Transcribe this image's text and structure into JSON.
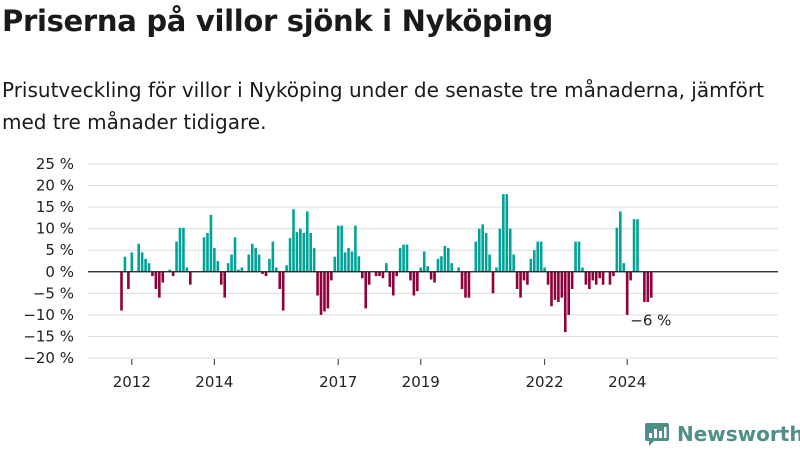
{
  "title": "Priserna på villor sjönk i Nyköping",
  "subtitle": "Prisutveckling för villor i Nyköping under de senaste tre månaderna, jämfört med tre månader tidigare.",
  "brand": {
    "name": "Newsworthy",
    "logo_icon": "bar-chart-icon"
  },
  "colors": {
    "positive": "#00a398",
    "negative": "#91003c",
    "brand": "#4f8f8a"
  },
  "chart_data": {
    "type": "bar",
    "x_unit": "month",
    "start": "2011-10",
    "y_ticks": [
      25,
      20,
      15,
      10,
      5,
      0,
      -5,
      -10,
      -15,
      -20
    ],
    "y_tick_labels": [
      "25 %",
      "20 %",
      "15 %",
      "10 %",
      "5 %",
      "0 %",
      "−5 %",
      "−10 %",
      "−15 %",
      "−20 %"
    ],
    "ylim": [
      -20,
      25
    ],
    "x_ticks": [
      {
        "label": "2012",
        "date": "2012-01"
      },
      {
        "label": "2014",
        "date": "2014-01"
      },
      {
        "label": "2017",
        "date": "2017-01"
      },
      {
        "label": "2019",
        "date": "2019-01"
      },
      {
        "label": "2022",
        "date": "2022-01"
      },
      {
        "label": "2024",
        "date": "2024-01"
      }
    ],
    "last_value_label": "−6 %",
    "values": [
      -9,
      3.5,
      -4,
      4.5,
      0,
      6.5,
      4.5,
      3,
      2,
      -1,
      -4,
      -6,
      -2.5,
      0,
      0.5,
      -1,
      7,
      10.2,
      10.2,
      1,
      -3,
      0,
      0,
      0,
      8,
      9,
      13.2,
      5.5,
      2.5,
      -3,
      -6,
      2,
      4,
      8,
      0.5,
      1,
      0,
      4,
      6.5,
      5.5,
      4,
      -0.5,
      -1,
      3,
      7,
      1,
      -4,
      -9,
      1.5,
      7.8,
      14.5,
      9.2,
      10,
      9,
      14,
      9,
      5.5,
      -5.5,
      -10,
      -9.2,
      -8.5,
      -2,
      3.5,
      10.7,
      10.7,
      4.5,
      5.5,
      4.7,
      10.7,
      3.6,
      -1.5,
      -8.5,
      -3,
      0,
      -1,
      -1,
      -1.5,
      2,
      -3.5,
      -5.5,
      -1,
      5.5,
      6.3,
      6.3,
      -2,
      -5.5,
      -4.5,
      1,
      4.7,
      1.3,
      -1.8,
      -2.5,
      3,
      3.6,
      6,
      5.5,
      2,
      0,
      1,
      -4,
      -6,
      -6,
      0,
      7,
      10,
      11,
      9,
      4,
      -5,
      1,
      10,
      18,
      18,
      10,
      4,
      -4,
      -6,
      -2,
      -3,
      3,
      5,
      7,
      7,
      1,
      -3,
      -8,
      -6.5,
      -7,
      -6,
      -14,
      -10,
      -4,
      7,
      7,
      1,
      -3,
      -4,
      -2,
      -3,
      -1.5,
      -3,
      0,
      -3,
      -1,
      10.2,
      14,
      2,
      -10,
      -2,
      12.2,
      12.2,
      0,
      -7,
      -7,
      -6
    ]
  }
}
